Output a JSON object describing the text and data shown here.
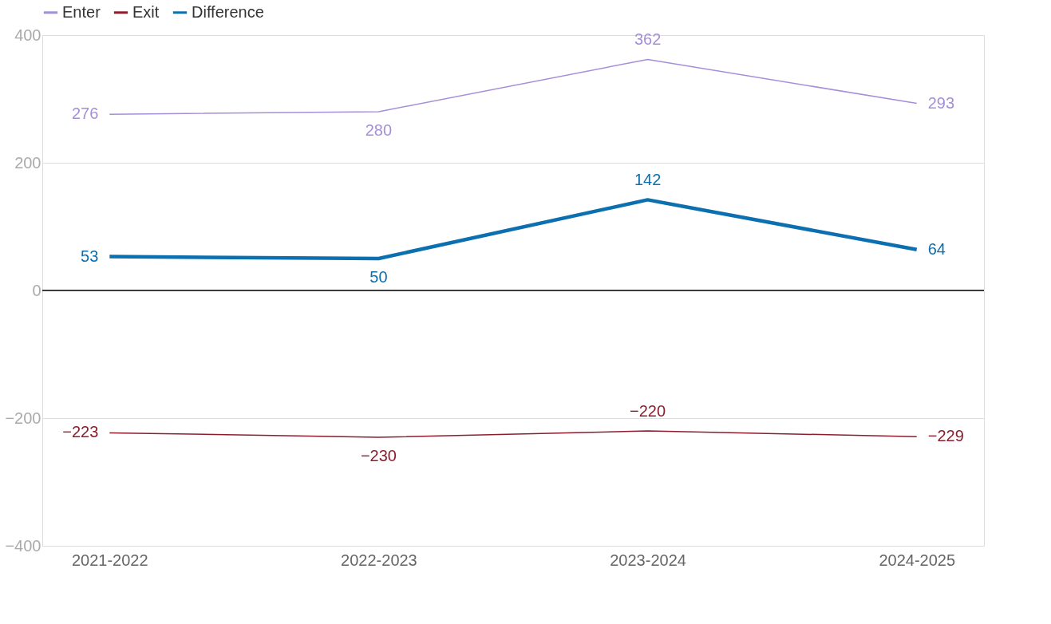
{
  "chart_data": {
    "type": "line",
    "categories": [
      "2021-2022",
      "2022-2023",
      "2023-2024",
      "2024-2025"
    ],
    "series": [
      {
        "name": "Enter",
        "color": "#a58fd8",
        "values": [
          276,
          280,
          362,
          293
        ],
        "value_labels": [
          "276",
          "280",
          "362",
          "293"
        ]
      },
      {
        "name": "Exit",
        "color": "#8b1e2e",
        "values": [
          -223,
          -230,
          -220,
          -229
        ],
        "value_labels": [
          "−223",
          "−230",
          "−220",
          "−229"
        ]
      },
      {
        "name": "Difference",
        "color": "#0b6fb0",
        "values": [
          53,
          50,
          142,
          64
        ],
        "value_labels": [
          "53",
          "50",
          "142",
          "64"
        ]
      }
    ],
    "ylim": [
      -400,
      400
    ],
    "yticks": [
      {
        "value": -400,
        "label": "−400"
      },
      {
        "value": -200,
        "label": "−200"
      },
      0,
      200,
      400
    ],
    "grid": "y",
    "legend": "top left",
    "marker": "none",
    "line_style": "solid"
  }
}
